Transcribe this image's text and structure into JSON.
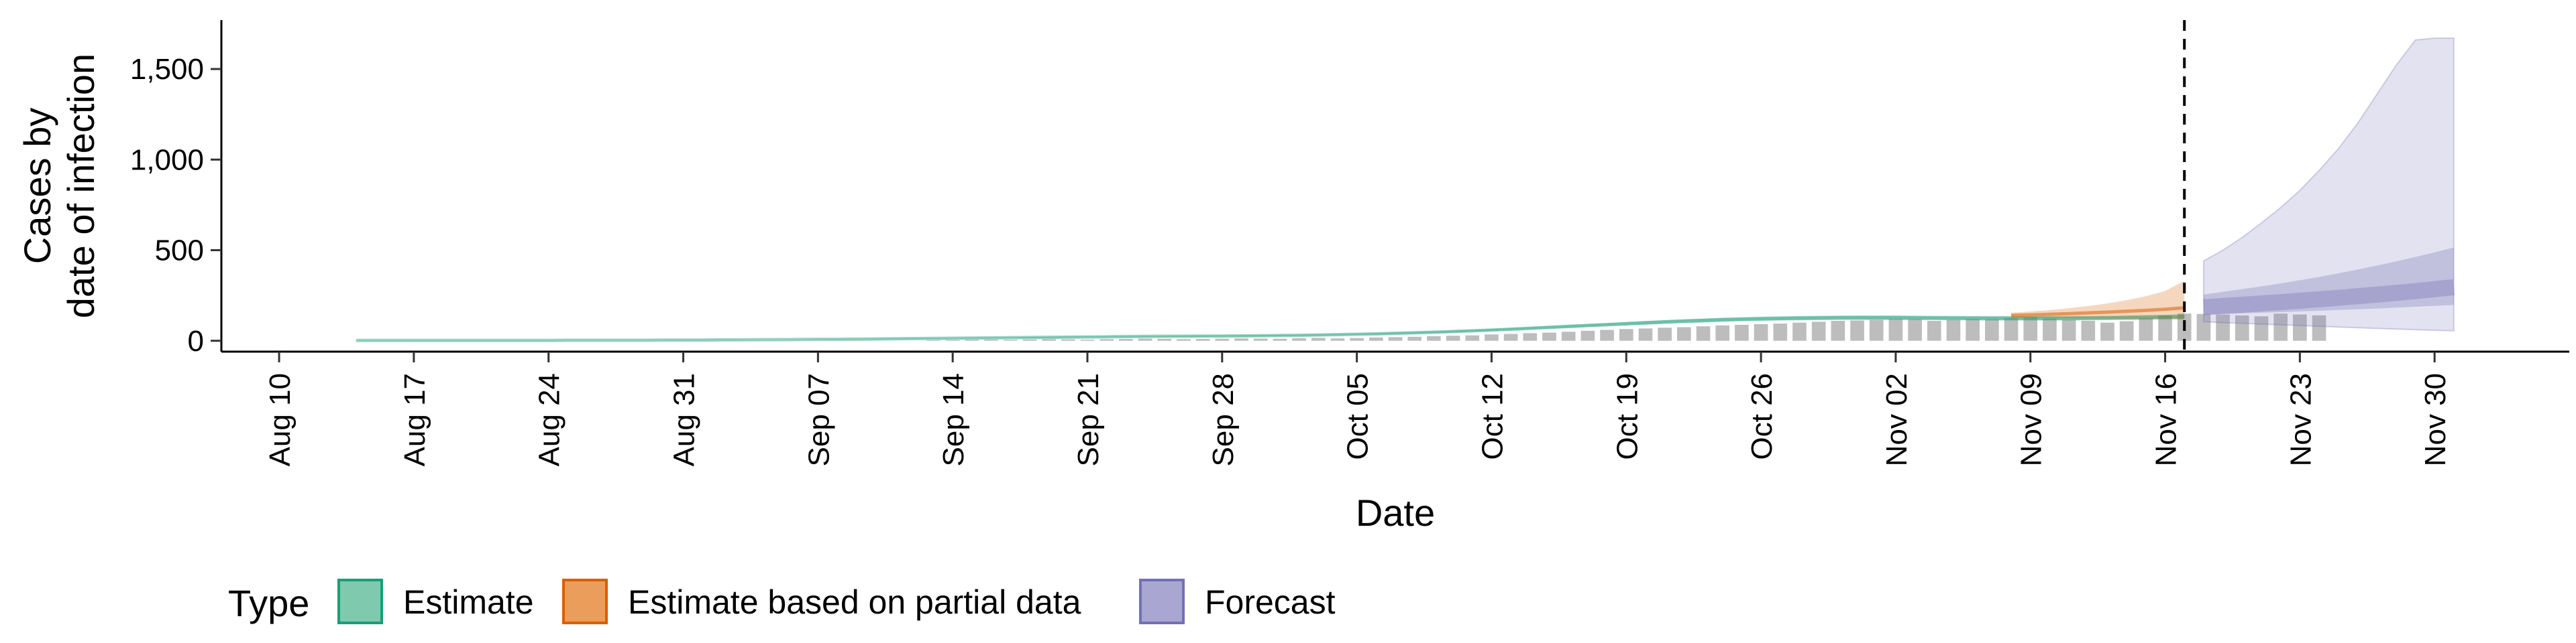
{
  "chart_data": {
    "type": "area",
    "xlabel": "Date",
    "ylabel_lines": [
      "Cases by",
      "date of infection"
    ],
    "x_start": "2020-08-10",
    "x_end": "2020-12-07",
    "xlim": [
      "2020-08-07",
      "2020-12-07"
    ],
    "ylim": [
      -60,
      1770
    ],
    "yticks": [
      0,
      500,
      1000,
      1500
    ],
    "ytick_labels": [
      "0",
      "500",
      "1,000",
      "1,500"
    ],
    "xtick_labels": [
      "Aug 10",
      "Aug 17",
      "Aug 24",
      "Aug 31",
      "Sep 07",
      "Sep 14",
      "Sep 21",
      "Sep 28",
      "Oct 05",
      "Oct 12",
      "Oct 19",
      "Oct 26",
      "Nov 02",
      "Nov 09",
      "Nov 16",
      "Nov 23",
      "Nov 30"
    ],
    "forecast_date": "2020-11-17",
    "grid": false,
    "legend": {
      "title": "Type",
      "placement": "bottom",
      "entries": [
        {
          "label": "Estimate",
          "fill": "#7fc9ae",
          "stroke": "#1b9e77"
        },
        {
          "label": "Estimate based on partial data",
          "fill": "#eb9d5c",
          "stroke": "#d95f02"
        },
        {
          "label": "Forecast",
          "fill": "#aaa6d2",
          "stroke": "#7570b3"
        }
      ]
    },
    "colors": {
      "estimate": "#1b9e77",
      "partial": "#d95f02",
      "forecast": "#7570b3",
      "bars": "#bdbdbd"
    },
    "observed_cases": {
      "start": "2020-09-13",
      "values": [
        3,
        4,
        5,
        6,
        5,
        7,
        9,
        8,
        6,
        9,
        10,
        12,
        11,
        9,
        10,
        11,
        13,
        12,
        11,
        14,
        16,
        13,
        15,
        18,
        20,
        22,
        25,
        28,
        30,
        35,
        38,
        42,
        45,
        50,
        55,
        60,
        65,
        68,
        72,
        75,
        80,
        85,
        88,
        92,
        95,
        100,
        105,
        110,
        112,
        115,
        120,
        118,
        110,
        115,
        120,
        118,
        125,
        130,
        122,
        115,
        110,
        100,
        108,
        125,
        140,
        150,
        148,
        145,
        140,
        135,
        150,
        145,
        140
      ]
    },
    "estimate": {
      "start": "2020-08-14",
      "median": [
        2,
        2,
        2,
        2,
        2,
        2,
        2,
        2,
        2,
        2,
        2,
        3,
        3,
        3,
        3,
        3,
        4,
        4,
        4,
        5,
        5,
        6,
        6,
        7,
        8,
        8,
        9,
        10,
        11,
        12,
        13,
        14,
        15,
        16,
        17,
        18,
        19,
        20,
        21,
        22,
        23,
        24,
        25,
        25,
        26,
        26,
        27,
        28,
        29,
        30,
        32,
        34,
        36,
        38,
        41,
        44,
        47,
        51,
        55,
        59,
        64,
        69,
        74,
        79,
        84,
        89,
        94,
        99,
        104,
        108,
        112,
        116,
        119,
        121,
        123,
        125,
        126,
        127,
        127,
        127,
        127,
        126,
        126,
        125,
        125,
        124,
        124,
        124,
        124,
        124,
        125,
        126,
        127,
        129,
        131,
        133
      ],
      "lower": [
        1,
        1,
        1,
        1,
        1,
        1,
        1,
        1,
        1,
        1,
        1,
        2,
        2,
        2,
        2,
        2,
        3,
        3,
        3,
        4,
        4,
        5,
        5,
        6,
        6,
        7,
        8,
        8,
        9,
        10,
        11,
        12,
        13,
        14,
        15,
        15,
        16,
        17,
        18,
        19,
        20,
        21,
        21,
        22,
        22,
        23,
        23,
        24,
        25,
        26,
        28,
        30,
        32,
        34,
        36,
        39,
        42,
        45,
        49,
        53,
        57,
        62,
        67,
        71,
        76,
        81,
        85,
        89,
        94,
        98,
        101,
        105,
        108,
        110,
        112,
        113,
        114,
        115,
        115,
        115,
        115,
        114,
        114,
        113,
        113,
        112,
        112,
        112,
        112,
        112,
        113,
        114,
        115,
        116,
        118,
        119
      ],
      "upper": [
        3,
        3,
        3,
        3,
        3,
        3,
        3,
        3,
        3,
        3,
        3,
        4,
        4,
        4,
        4,
        4,
        5,
        5,
        5,
        6,
        6,
        7,
        7,
        8,
        9,
        10,
        11,
        12,
        13,
        14,
        15,
        16,
        17,
        18,
        19,
        21,
        22,
        23,
        24,
        25,
        26,
        27,
        28,
        29,
        29,
        30,
        31,
        32,
        33,
        34,
        36,
        38,
        40,
        43,
        46,
        49,
        53,
        57,
        61,
        66,
        71,
        76,
        82,
        88,
        93,
        98,
        104,
        109,
        114,
        119,
        123,
        127,
        130,
        133,
        135,
        137,
        138,
        139,
        140,
        140,
        140,
        139,
        138,
        138,
        137,
        137,
        137,
        136,
        136,
        137,
        137,
        138,
        140,
        142,
        144,
        147
      ]
    },
    "partial": {
      "start": "2020-11-08",
      "median": [
        140,
        143,
        146,
        150,
        154,
        158,
        163,
        168,
        174,
        182
      ],
      "lower": [
        125,
        125,
        124,
        124,
        123,
        122,
        121,
        120,
        119,
        118
      ],
      "upper": [
        155,
        162,
        170,
        180,
        192,
        206,
        224,
        246,
        275,
        330
      ]
    },
    "forecast": {
      "start": "2020-11-18",
      "median": [
        185,
        192,
        199,
        206,
        213,
        221,
        229,
        237,
        246,
        255,
        264,
        274,
        285,
        296
      ],
      "lower50": [
        145,
        148,
        151,
        155,
        158,
        162,
        166,
        170,
        174,
        178,
        183,
        188,
        193,
        198
      ],
      "upper50": [
        255,
        270,
        285,
        300,
        316,
        334,
        352,
        372,
        393,
        415,
        438,
        462,
        488,
        515
      ],
      "lower90": [
        105,
        100,
        96,
        92,
        88,
        84,
        80,
        76,
        72,
        68,
        65,
        61,
        58,
        55
      ],
      "upper90": [
        440,
        500,
        570,
        650,
        735,
        830,
        940,
        1060,
        1200,
        1360,
        1520,
        1660,
        1670,
        1670
      ]
    }
  }
}
